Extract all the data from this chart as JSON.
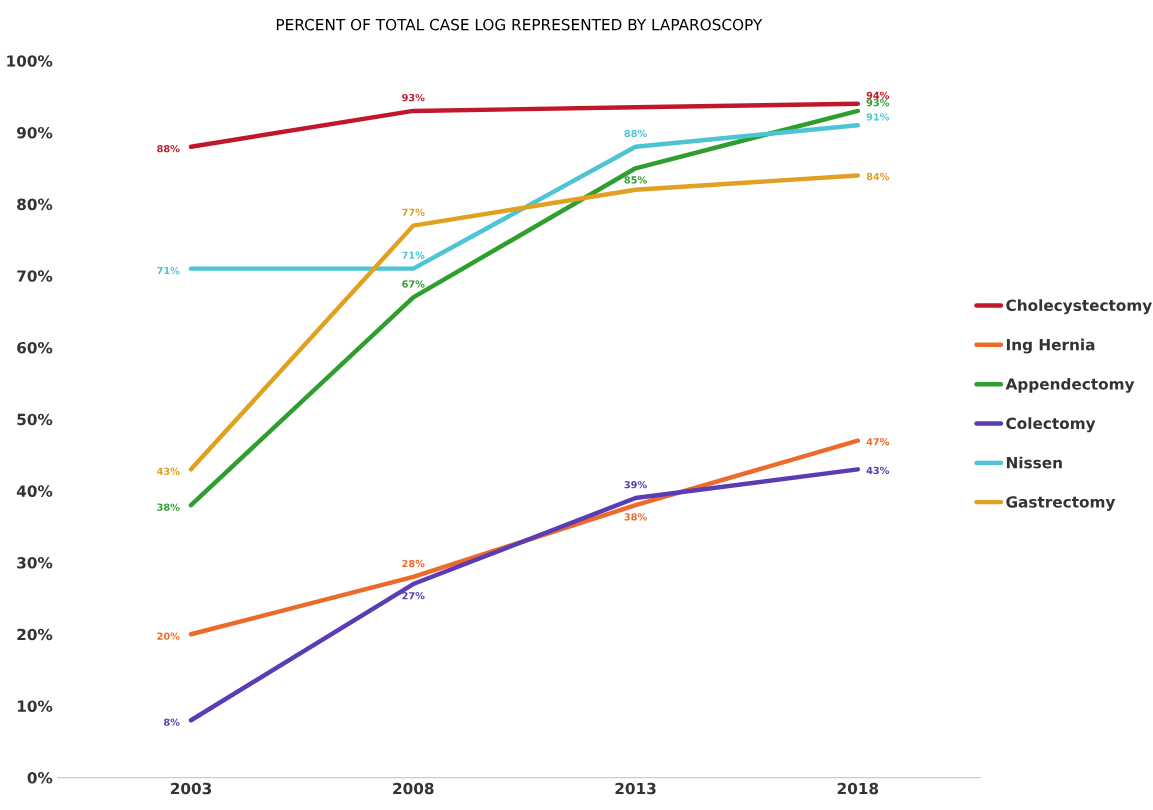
{
  "chart_data": {
    "type": "line",
    "title": "PERCENT OF TOTAL CASE LOG REPRESENTED BY LAPAROSCOPY",
    "categories": [
      "2003",
      "2008",
      "2013",
      "2018"
    ],
    "ylim": [
      0,
      100
    ],
    "yticks": [
      {
        "value": 0,
        "label": "0%"
      },
      {
        "value": 10,
        "label": "10%"
      },
      {
        "value": 20,
        "label": "20%"
      },
      {
        "value": 30,
        "label": "30%"
      },
      {
        "value": 40,
        "label": "40%"
      },
      {
        "value": 50,
        "label": "50%"
      },
      {
        "value": 60,
        "label": "60%"
      },
      {
        "value": 70,
        "label": "70%"
      },
      {
        "value": 80,
        "label": "80%"
      },
      {
        "value": 90,
        "label": "90%"
      },
      {
        "value": 100,
        "label": "100%"
      }
    ],
    "grid": false,
    "legend": "right",
    "marker": "none",
    "line_style": "solid",
    "series": [
      {
        "name": "Cholecystectomy",
        "color": "#c0182a",
        "values": [
          88,
          93,
          93.5,
          94
        ],
        "value_labels": [
          "88%",
          "93%",
          null,
          "94%"
        ]
      },
      {
        "name": "Ing Hernia",
        "color": "#ee6a2a",
        "values": [
          20,
          28,
          38,
          47
        ],
        "value_labels": [
          "20%",
          "28%",
          "38%",
          "47%"
        ]
      },
      {
        "name": "Appendectomy",
        "color": "#2e9e2e",
        "values": [
          38,
          67,
          85,
          93
        ],
        "value_labels": [
          "38%",
          "67%",
          "85%",
          "93%"
        ]
      },
      {
        "name": "Colectomy",
        "color": "#5a3cb4",
        "values": [
          8,
          27,
          39,
          43
        ],
        "value_labels": [
          "8%",
          "27%",
          "39%",
          "43%"
        ]
      },
      {
        "name": "Nissen",
        "color": "#4cc4d4",
        "values": [
          71,
          71,
          88,
          91
        ],
        "value_labels": [
          "71%",
          "71%",
          "88%",
          "91%"
        ]
      },
      {
        "name": "Gastrectomy",
        "color": "#e0a020",
        "values": [
          43,
          77,
          82,
          84
        ],
        "value_labels": [
          "43%",
          "77%",
          null,
          "84%"
        ]
      }
    ]
  }
}
